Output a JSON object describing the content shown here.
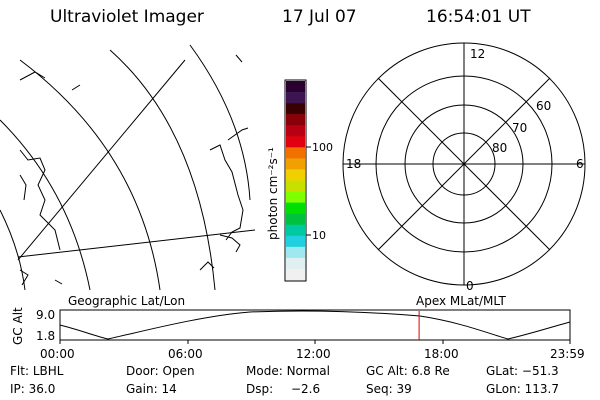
{
  "header": {
    "instrument": "Ultraviolet Imager",
    "date": "17 Jul 07",
    "time": "16:54:01 UT"
  },
  "colorbar": {
    "unit_label": "photon cm⁻²s⁻¹",
    "tick_100": "100",
    "tick_10": "10",
    "colors": [
      "#2a0030",
      "#3c1450",
      "#3a0000",
      "#8a0008",
      "#b80014",
      "#e00010",
      "#f07000",
      "#f0a000",
      "#f0d000",
      "#c8e000",
      "#80ff00",
      "#00e000",
      "#00c040",
      "#00c8a0",
      "#20d0e0",
      "#a0e8f0",
      "#e0f0f0",
      "#f0f0f0"
    ]
  },
  "map_labels": {
    "left": "Geographic Lat/Lon",
    "right": "Apex MLat/MLT"
  },
  "polar": {
    "mlt_12": "12",
    "mlt_18": "18",
    "mlt_6": "6",
    "mlt_0": "0",
    "lat_60": "60",
    "lat_70": "70",
    "lat_80": "80"
  },
  "timeline": {
    "ylabel": "GC Alt",
    "ymax": "9.0",
    "ymin": "1.8",
    "ticks": [
      "00:00",
      "06:00",
      "12:00",
      "18:00",
      "23:59"
    ],
    "marker_color": "#e00000",
    "marker_fraction": 0.7042
  },
  "status": {
    "flt_label": "Flt:",
    "flt_value": "LBHL",
    "door_label": "Door:",
    "door_value": "Open",
    "mode_label": "Mode:",
    "mode_value": "Normal",
    "gcalt_label": "GC Alt:",
    "gcalt_value": "6.8 Re",
    "glat_label": "GLat:",
    "glat_value": "−51.3",
    "ip_label": "IP:",
    "ip_value": "36.0",
    "gain_label": "Gain:",
    "gain_value": "14",
    "dsp_label": "Dsp:",
    "dsp_value": "−2.6",
    "seq_label": "Seq:",
    "seq_value": "39",
    "glon_label": "GLon:",
    "glon_value": "113.7"
  }
}
